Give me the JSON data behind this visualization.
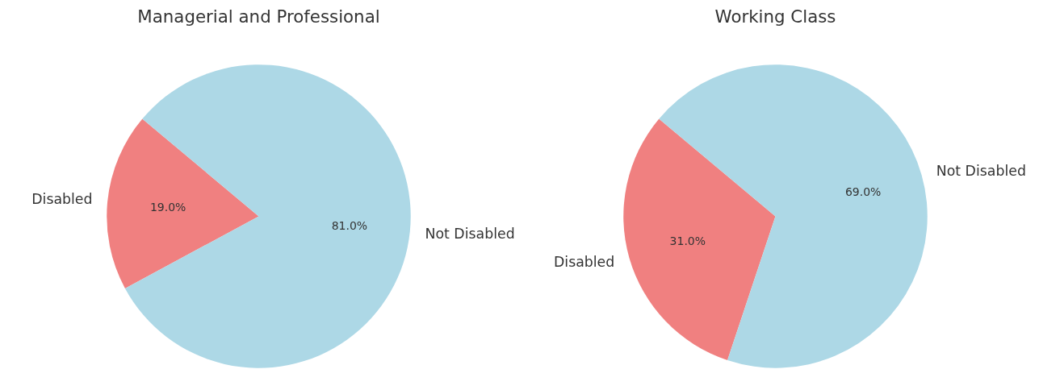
{
  "chart_data": [
    {
      "type": "pie",
      "title": "Managerial and Professional",
      "categories": [
        "Disabled",
        "Not Disabled"
      ],
      "values": [
        19,
        81
      ],
      "colors": [
        "#f08080",
        "#add8e6"
      ],
      "value_labels": [
        "19.0%",
        "81.0%"
      ]
    },
    {
      "type": "pie",
      "title": "Working Class",
      "categories": [
        "Disabled",
        "Not Disabled"
      ],
      "values": [
        31,
        69
      ],
      "colors": [
        "#f08080",
        "#add8e6"
      ],
      "value_labels": [
        "31.0%",
        "69.0%"
      ]
    }
  ]
}
